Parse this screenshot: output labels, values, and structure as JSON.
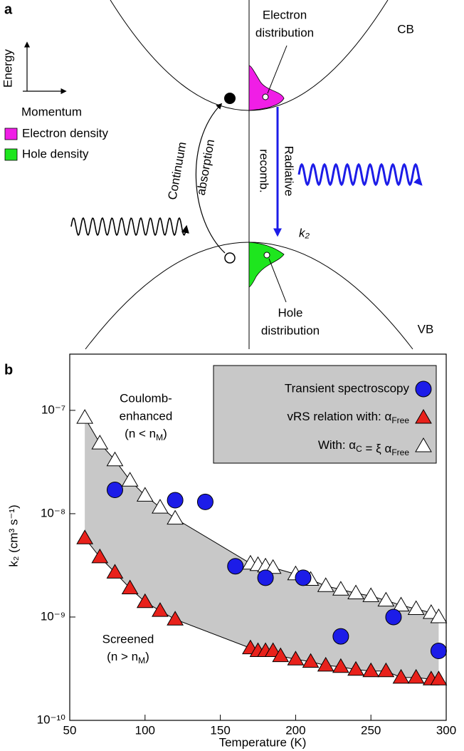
{
  "panel_a": {
    "label": "a",
    "axis_y": "Energy",
    "axis_x": "Momentum",
    "legend": [
      "Electron density",
      "Hole density"
    ],
    "electron_distribution": [
      "Electron",
      "distribution"
    ],
    "hole_distribution": [
      "Hole",
      "distribution"
    ],
    "cb": "CB",
    "vb": "VB",
    "continuum_absorption": [
      "Continuum",
      "absorption"
    ],
    "radiative_recombination": [
      "Radiative",
      "recomb."
    ],
    "rate": "k₂"
  },
  "chart_data": {
    "type": "scatter",
    "panel_label": "b",
    "x_label": "Temperature (K)",
    "y_label": "k₂ (cm³ s⁻¹)",
    "log_y": true,
    "xlim": [
      50,
      300
    ],
    "xticks": [
      50,
      100,
      150,
      200,
      250,
      300
    ],
    "ylim": [
      1e-10,
      3.5e-07
    ],
    "yticks": [
      {
        "value": 1e-10,
        "label": "10⁻¹⁰"
      },
      {
        "value": 1e-09,
        "label": "10⁻⁹"
      },
      {
        "value": 1e-08,
        "label": "10⁻⁸"
      },
      {
        "value": 1e-07,
        "label": "10⁻⁷"
      }
    ],
    "legend_position": "top-right",
    "band_color": "#c8c8c8",
    "annotations": [
      {
        "lines": [
          "Coulomb-",
          "enhanced",
          "(n < nM)"
        ],
        "color": "#000000"
      },
      {
        "lines": [
          "Screened",
          "(n > nM)"
        ],
        "color": "#e8211b"
      }
    ],
    "series": [
      {
        "name": "Transient spectroscopy",
        "color": "#1c1ce8",
        "marker": "circle",
        "x": [
          80,
          120,
          140,
          160,
          180,
          205,
          230,
          265,
          295
        ],
        "values": [
          1.7e-08,
          1.35e-08,
          1.3e-08,
          3.1e-09,
          2.4e-09,
          2.4e-09,
          6.5e-10,
          1e-09,
          4.7e-10
        ]
      },
      {
        "name": "vRS relation with: αFree",
        "color": "#e8211b",
        "marker": "triangle",
        "fit_line": true,
        "x": [
          60,
          70,
          80,
          90,
          100,
          110,
          120,
          170,
          175,
          180,
          185,
          190,
          200,
          210,
          220,
          230,
          240,
          250,
          260,
          270,
          280,
          290,
          295
        ],
        "values": [
          5.8e-09,
          3.8e-09,
          2.7e-09,
          1.9e-09,
          1.4e-09,
          1.15e-09,
          9.5e-10,
          5e-10,
          4.7e-10,
          4.7e-10,
          4.7e-10,
          4.2e-10,
          3.9e-10,
          3.7e-10,
          3.4e-10,
          3.3e-10,
          3.1e-10,
          3e-10,
          3e-10,
          2.6e-10,
          2.6e-10,
          2.5e-10,
          2.5e-10
        ]
      },
      {
        "name": "With: αC = ξ αFree",
        "color": "#ffffff",
        "marker": "triangle",
        "fit_line": true,
        "x": [
          60,
          70,
          80,
          90,
          100,
          110,
          120,
          170,
          175,
          180,
          185,
          200,
          210,
          220,
          230,
          240,
          250,
          260,
          270,
          280,
          290,
          295
        ],
        "values": [
          8.5e-08,
          4.8e-08,
          3.3e-08,
          2.1e-08,
          1.5e-08,
          1.15e-08,
          9e-09,
          3.3e-09,
          3.2e-09,
          3.1e-09,
          3e-09,
          2.6e-09,
          2.3e-09,
          2e-09,
          1.85e-09,
          1.7e-09,
          1.6e-09,
          1.45e-09,
          1.3e-09,
          1.2e-09,
          1.1e-09,
          1e-09
        ]
      }
    ]
  }
}
